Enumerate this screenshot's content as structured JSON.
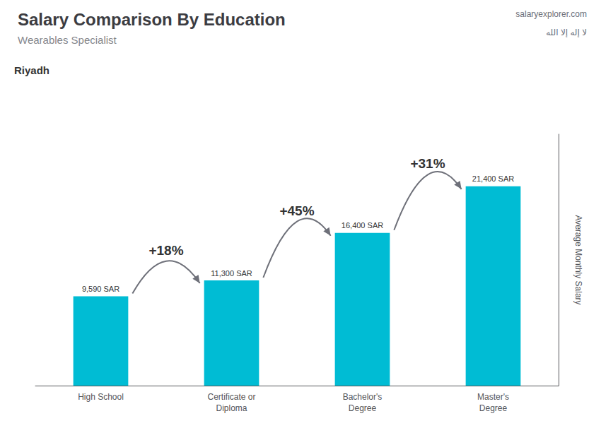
{
  "chart_data": {
    "type": "bar",
    "title": "Salary Comparison By Education",
    "subtitle": "Wearables Specialist",
    "ylabel": "Average Monthly Salary",
    "categories": [
      "High School",
      "Certificate or\nDiploma",
      "Bachelor's\nDegree",
      "Master's\nDegree"
    ],
    "values": [
      9590,
      11300,
      16400,
      21400
    ],
    "value_labels": [
      "9,590 SAR",
      "11,300 SAR",
      "16,400 SAR",
      "21,400 SAR"
    ],
    "data_labels": true,
    "color": "#00bcd4",
    "ylim": [
      0,
      27000
    ],
    "tick_labels": "x",
    "grid": false,
    "annotations": [
      {
        "text": "+18%",
        "from": "High School",
        "to": "Certificate or\nDiploma"
      },
      {
        "text": "+45%",
        "from": "Certificate or\nDiploma",
        "to": "Bachelor's\nDegree"
      },
      {
        "text": "+31%",
        "from": "Bachelor's\nDegree",
        "to": "Master's\nDegree"
      },
      {
        "text": "Riyadh"
      },
      {
        "text": "salaryexplorer.com"
      },
      {
        "text": "لا إله إلا الله"
      }
    ]
  }
}
